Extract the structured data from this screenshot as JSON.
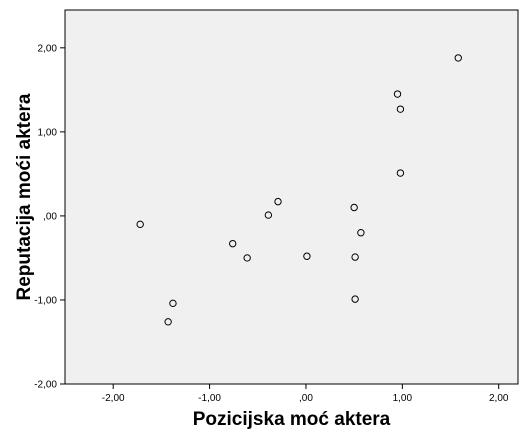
{
  "chart_data": {
    "type": "scatter",
    "title": "",
    "xlabel": "Pozicijska moć aktera",
    "ylabel": "Reputacija moći aktera",
    "xlim": [
      -2.5,
      2.2
    ],
    "ylim": [
      -2.0,
      2.45
    ],
    "x_ticks": [
      {
        "value": -2,
        "label": "-2,00"
      },
      {
        "value": -1,
        "label": "-1,00"
      },
      {
        "value": 0,
        "label": ",00"
      },
      {
        "value": 1,
        "label": "1,00"
      },
      {
        "value": 2,
        "label": "2,00"
      }
    ],
    "y_ticks": [
      {
        "value": -2,
        "label": "-2,00"
      },
      {
        "value": -1,
        "label": "-1,00"
      },
      {
        "value": 0,
        "label": ",00"
      },
      {
        "value": 1,
        "label": "1,00"
      },
      {
        "value": 2,
        "label": "2,00"
      }
    ],
    "grid": false,
    "plot_background": "#f0f0f0",
    "marker": "hollow-circle",
    "points": [
      {
        "x": -1.72,
        "y": -0.1
      },
      {
        "x": -1.38,
        "y": -1.04
      },
      {
        "x": -1.43,
        "y": -1.26
      },
      {
        "x": -0.76,
        "y": -0.33
      },
      {
        "x": -0.61,
        "y": -0.5
      },
      {
        "x": -0.39,
        "y": 0.01
      },
      {
        "x": -0.29,
        "y": 0.17
      },
      {
        "x": 0.01,
        "y": -0.48
      },
      {
        "x": 0.5,
        "y": 0.1
      },
      {
        "x": 0.57,
        "y": -0.2
      },
      {
        "x": 0.51,
        "y": -0.49
      },
      {
        "x": 0.51,
        "y": -0.99
      },
      {
        "x": 0.95,
        "y": 1.45
      },
      {
        "x": 0.98,
        "y": 1.27
      },
      {
        "x": 0.98,
        "y": 0.51
      },
      {
        "x": 1.58,
        "y": 1.88
      }
    ]
  }
}
